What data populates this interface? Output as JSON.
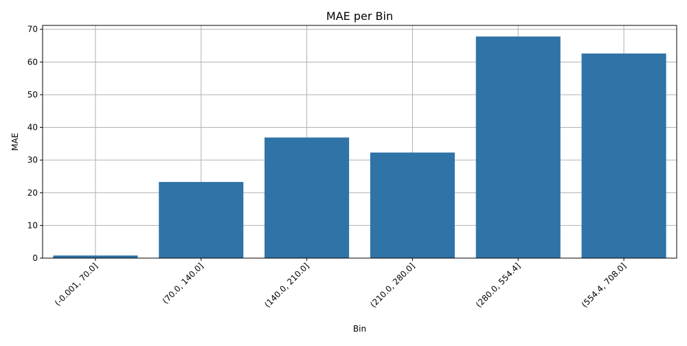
{
  "chart_data": {
    "type": "bar",
    "title": "MAE per Bin",
    "xlabel": "Bin",
    "ylabel": "MAE",
    "categories": [
      "(-0.001, 70.0]",
      "(70.0, 140.0]",
      "(140.0, 210.0]",
      "(210.0, 280.0]",
      "(280.0, 554.4]",
      "(554.4, 708.0]"
    ],
    "values": [
      0.8,
      23.3,
      36.9,
      32.3,
      67.8,
      62.6
    ],
    "ylim": [
      0,
      71.2
    ],
    "yticks": [
      0,
      10,
      20,
      30,
      40,
      50,
      60,
      70
    ],
    "xtick_rotation_deg": 45,
    "grid": true,
    "bar_color": "#2f73a7"
  }
}
